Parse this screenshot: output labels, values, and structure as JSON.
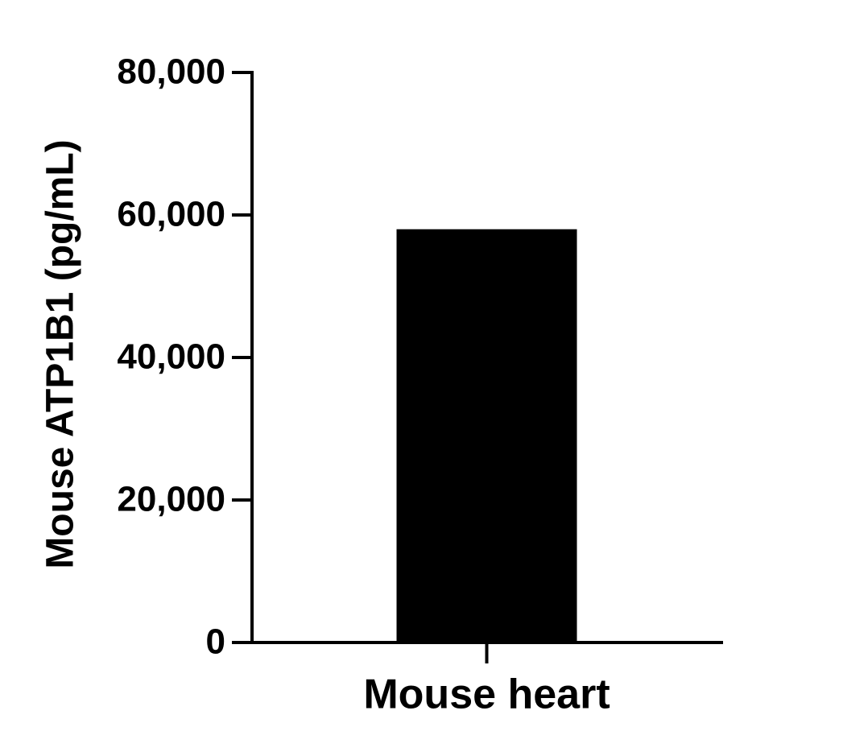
{
  "chart_data": {
    "type": "bar",
    "y_label": "Mouse ATP1B1 (pg/mL)",
    "categories": [
      "Mouse heart"
    ],
    "values": [
      58000
    ],
    "color": "#000000",
    "ylim": [
      0,
      80000
    ],
    "yticks": [
      0,
      {
        "value": 20000,
        "label": "20,000"
      },
      {
        "value": 40000,
        "label": "40,000"
      },
      {
        "value": 60000,
        "label": "60,000"
      },
      {
        "value": 80000,
        "label": "80,000"
      }
    ],
    "grid": false
  }
}
